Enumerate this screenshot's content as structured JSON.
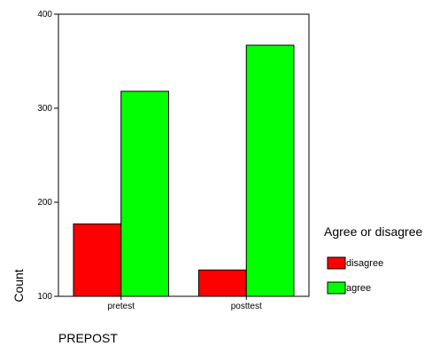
{
  "chart_data": {
    "type": "bar",
    "categories": [
      "pretest",
      "posttest"
    ],
    "series": [
      {
        "name": "disagree",
        "values": [
          177,
          128
        ],
        "color": "#ff0000"
      },
      {
        "name": "agree",
        "values": [
          318,
          367
        ],
        "color": "#00ff00"
      }
    ],
    "xlabel": "PREPOST",
    "ylabel": "Count",
    "ylim": [
      100,
      400
    ],
    "yticks": [
      100,
      200,
      300,
      400
    ],
    "legend": {
      "title": "Agree or disagree",
      "placement": "right"
    },
    "grid": false
  }
}
